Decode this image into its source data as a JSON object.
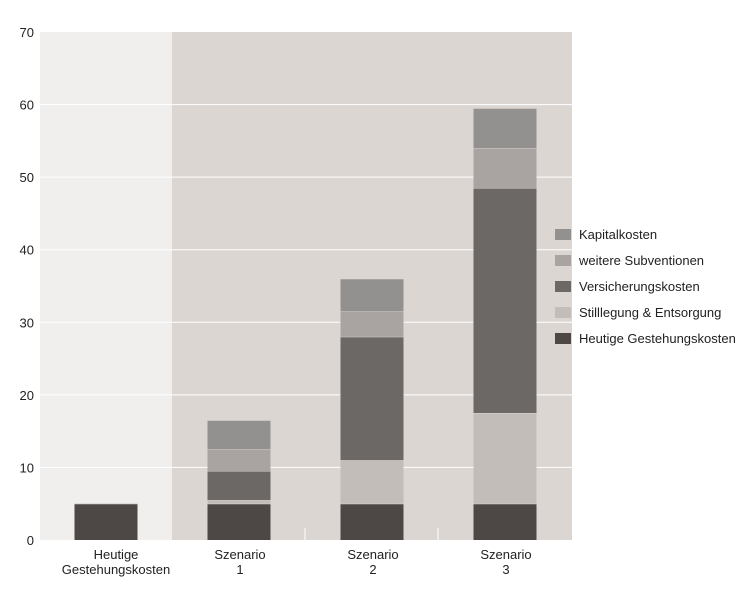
{
  "chart_data": {
    "type": "bar",
    "stacked": true,
    "title": "",
    "xlabel": "",
    "ylabel": "",
    "ylim": [
      0,
      70
    ],
    "yticks": [
      "0",
      "10",
      "20",
      "30",
      "40",
      "50",
      "60",
      "70"
    ],
    "grid": true,
    "legend_position": "right",
    "categories": [
      [
        "Heutige",
        "Gestehungskosten"
      ],
      [
        "Szenario",
        "1"
      ],
      [
        "Szenario",
        "2"
      ],
      [
        "Szenario",
        "3"
      ]
    ],
    "series": [
      {
        "name": "Heutige Gestehungskosten",
        "color": "#4d4745",
        "values": [
          5,
          5,
          5,
          5
        ]
      },
      {
        "name": "Stilllegung & Entsorgung",
        "color": "#c3bdb9",
        "values": [
          0,
          0.5,
          6,
          12.5
        ]
      },
      {
        "name": "Versicherungskosten",
        "color": "#6b6866",
        "values": [
          0,
          4,
          17,
          31
        ]
      },
      {
        "name": "weitere Subventionen",
        "color": "#a9a4a1",
        "values": [
          0,
          3,
          3.5,
          5.5
        ]
      },
      {
        "name": "Kapitalkosten",
        "color": "#939090",
        "values": [
          0,
          4,
          4.5,
          5.5
        ]
      }
    ],
    "legend_order": [
      "Kapitalkosten",
      "weitere Subventionen",
      "Versicherungskosten",
      "Stilllegung & Entsorgung",
      "Heutige Gestehungskosten"
    ],
    "background": {
      "left_panel": "#f0efed",
      "right_panel": "#dcd6d2",
      "grid": "#ffffff"
    }
  }
}
